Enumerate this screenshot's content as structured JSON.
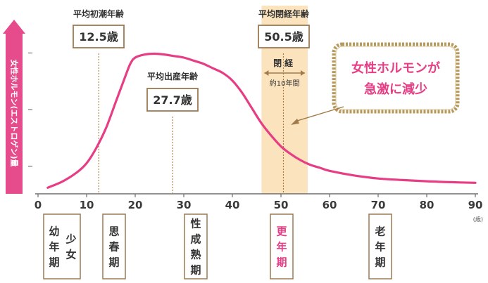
{
  "colors": {
    "curve": "#e63d85",
    "axis_bar": "#e64b8c",
    "menopause_band": "#fbe3bd",
    "box_border": "#9b7a52",
    "rope_border": "#b8995c",
    "gridline": "#8a8a8a",
    "text": "#333333",
    "highlight_text": "#e63d85"
  },
  "chart_data": {
    "type": "line",
    "ylabel": "女性ホルモン(エストロゲン)量",
    "x_unit": "(歳)",
    "x_ticks": [
      "0",
      "10",
      "20",
      "30",
      "40",
      "50",
      "60",
      "70",
      "80",
      "90"
    ],
    "xlim": [
      0,
      90
    ],
    "ylim": [
      0,
      100
    ],
    "grid": false,
    "series": [
      {
        "x": [
          2,
          5,
          8,
          10,
          12,
          14,
          16,
          18,
          19,
          20,
          22,
          24,
          26,
          28,
          30,
          32,
          34,
          36,
          38,
          40,
          42,
          44,
          46,
          48,
          50,
          52,
          54,
          56,
          58,
          60,
          65,
          70,
          75,
          80,
          85,
          90
        ],
        "y": [
          4,
          8,
          14,
          20,
          30,
          43,
          60,
          77,
          85,
          89,
          91,
          91.5,
          91,
          90,
          89,
          87,
          85,
          82,
          79,
          74,
          66,
          56,
          46,
          38,
          31,
          26,
          22,
          19,
          17,
          15,
          12,
          10,
          9,
          8.2,
          7.6,
          7.2
        ]
      }
    ],
    "menopause_band": [
      46,
      55.5
    ],
    "annotations": [
      {
        "label": "平均初潮年齢",
        "value": "12.5歳",
        "x": 12.5
      },
      {
        "label": "平均出産年齢",
        "value": "27.7歳",
        "x": 27.7
      },
      {
        "label": "平均閉経年齢",
        "value": "50.5歳",
        "x": 50.5
      }
    ],
    "band_label": "閉経",
    "band_range_label": "約10年間",
    "callout": {
      "line1": "女性ホルモンが",
      "line2": "急激に減少",
      "points_to_x": 50
    }
  },
  "life_stages": [
    {
      "text_cols": [
        "少女",
        "幼年期"
      ],
      "highlight": false
    },
    {
      "text_cols": [
        "思春期"
      ],
      "highlight": false
    },
    {
      "text_cols": [
        "性成熟期"
      ],
      "highlight": false
    },
    {
      "text_cols": [
        "更年期"
      ],
      "highlight": true
    },
    {
      "text_cols": [
        "老年期"
      ],
      "highlight": false
    }
  ]
}
